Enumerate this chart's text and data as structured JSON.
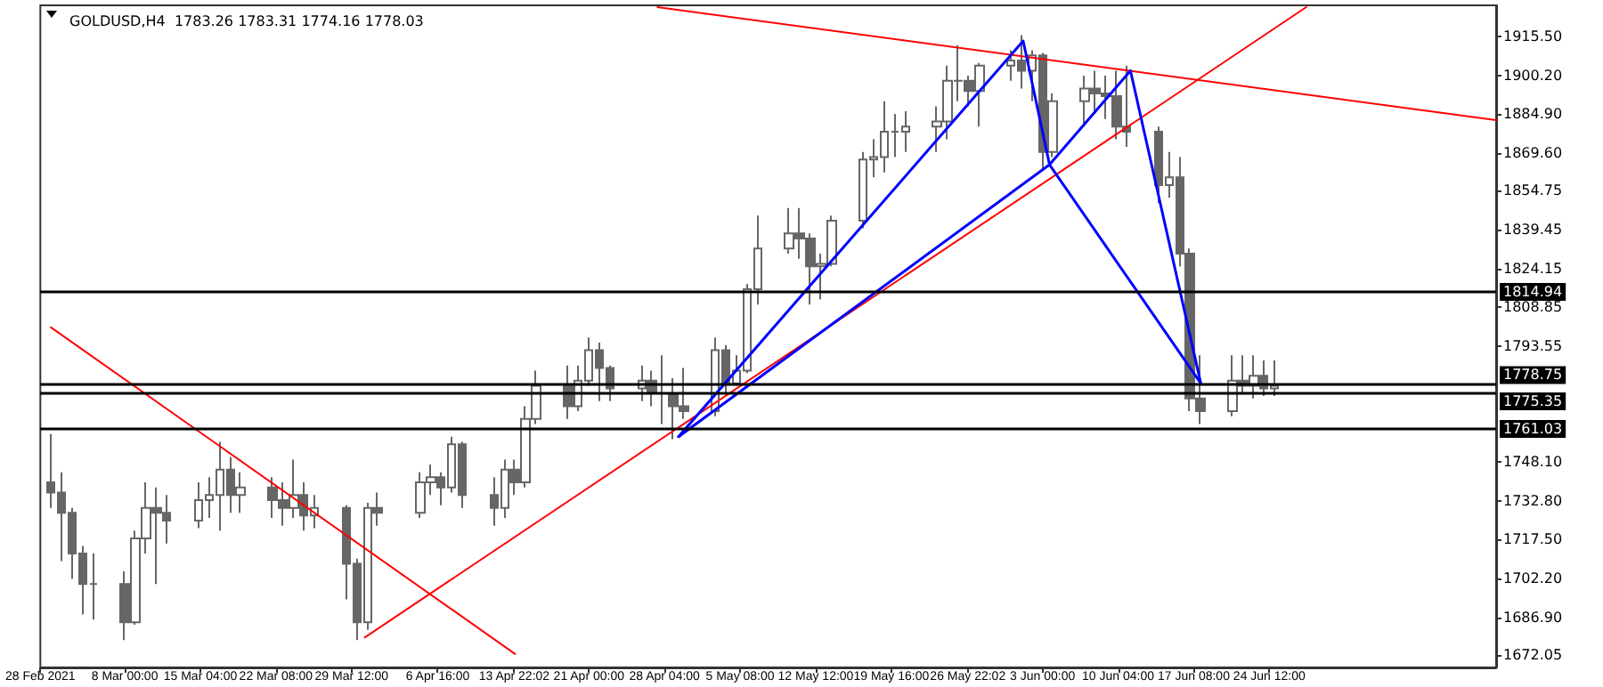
{
  "chart_data": {
    "type": "candlestick",
    "title": "GOLDUSD,H4  1783.26 1783.31 1774.16 1778.03",
    "color": "#666666",
    "marker": "none",
    "line_style": "solid",
    "grid": false,
    "x": [
      "2021-03-01",
      "2021-03-02",
      "2021-03-03",
      "2021-03-04",
      "2021-03-05",
      "2021-03-08",
      "2021-03-09",
      "2021-03-10",
      "2021-03-11",
      "2021-03-12",
      "2021-03-15",
      "2021-03-16",
      "2021-03-17",
      "2021-03-18",
      "2021-03-19",
      "2021-03-22",
      "2021-03-23",
      "2021-03-24",
      "2021-03-25",
      "2021-03-26",
      "2021-03-29",
      "2021-03-30",
      "2021-03-31",
      "2021-04-01",
      "2021-04-05",
      "2021-04-06",
      "2021-04-07",
      "2021-04-08",
      "2021-04-09",
      "2021-04-12",
      "2021-04-13",
      "2021-04-14",
      "2021-04-15",
      "2021-04-16",
      "2021-04-19",
      "2021-04-20",
      "2021-04-21",
      "2021-04-22",
      "2021-04-23",
      "2021-04-26",
      "2021-04-27",
      "2021-04-28",
      "2021-04-29",
      "2021-04-30",
      "2021-05-03",
      "2021-05-04",
      "2021-05-05",
      "2021-05-06",
      "2021-05-07",
      "2021-05-10",
      "2021-05-11",
      "2021-05-12",
      "2021-05-13",
      "2021-05-14",
      "2021-05-17",
      "2021-05-18",
      "2021-05-19",
      "2021-05-20",
      "2021-05-21",
      "2021-05-24",
      "2021-05-25",
      "2021-05-26",
      "2021-05-27",
      "2021-05-28",
      "2021-05-31",
      "2021-06-01",
      "2021-06-02",
      "2021-06-03",
      "2021-06-04",
      "2021-06-07",
      "2021-06-08",
      "2021-06-09",
      "2021-06-10",
      "2021-06-11",
      "2021-06-14",
      "2021-06-15",
      "2021-06-16",
      "2021-06-17",
      "2021-06-18",
      "2021-06-21",
      "2021-06-22",
      "2021-06-23",
      "2021-06-24",
      "2021-06-25"
    ],
    "ohlc": [
      [
        1740,
        1759,
        1730,
        1736
      ],
      [
        1736,
        1744,
        1709,
        1728
      ],
      [
        1728,
        1730,
        1702,
        1712
      ],
      [
        1712,
        1715,
        1688,
        1700
      ],
      [
        1700,
        1712,
        1686,
        1700
      ],
      [
        1700,
        1705,
        1678,
        1685
      ],
      [
        1685,
        1721,
        1684,
        1718
      ],
      [
        1718,
        1740,
        1712,
        1730
      ],
      [
        1730,
        1738,
        1700,
        1728
      ],
      [
        1728,
        1735,
        1716,
        1725
      ],
      [
        1725,
        1740,
        1722,
        1733
      ],
      [
        1733,
        1742,
        1726,
        1735
      ],
      [
        1735,
        1756,
        1721,
        1745
      ],
      [
        1745,
        1750,
        1728,
        1735
      ],
      [
        1735,
        1744,
        1728,
        1738
      ],
      [
        1738,
        1742,
        1726,
        1733
      ],
      [
        1733,
        1740,
        1723,
        1730
      ],
      [
        1730,
        1749,
        1726,
        1735
      ],
      [
        1735,
        1740,
        1721,
        1727
      ],
      [
        1727,
        1735,
        1722,
        1730
      ],
      [
        1730,
        1731,
        1694,
        1708
      ],
      [
        1708,
        1710,
        1678,
        1685
      ],
      [
        1685,
        1732,
        1682,
        1730
      ],
      [
        1730,
        1736,
        1723,
        1728
      ],
      [
        1728,
        1744,
        1726,
        1740
      ],
      [
        1740,
        1747,
        1735,
        1742
      ],
      [
        1742,
        1744,
        1731,
        1738
      ],
      [
        1738,
        1758,
        1736,
        1755
      ],
      [
        1755,
        1756,
        1730,
        1735
      ],
      [
        1735,
        1742,
        1723,
        1730
      ],
      [
        1730,
        1749,
        1726,
        1745
      ],
      [
        1745,
        1749,
        1735,
        1740
      ],
      [
        1740,
        1770,
        1738,
        1765
      ],
      [
        1765,
        1784,
        1763,
        1778
      ],
      [
        1778,
        1786,
        1765,
        1770
      ],
      [
        1770,
        1786,
        1768,
        1780
      ],
      [
        1780,
        1797,
        1778,
        1792
      ],
      [
        1792,
        1795,
        1772,
        1785
      ],
      [
        1785,
        1786,
        1772,
        1777
      ],
      [
        1777,
        1786,
        1772,
        1780
      ],
      [
        1780,
        1784,
        1770,
        1775
      ],
      [
        1775,
        1790,
        1763,
        1775
      ],
      [
        1775,
        1781,
        1757,
        1770
      ],
      [
        1770,
        1785,
        1765,
        1768
      ],
      [
        1768,
        1797,
        1766,
        1792
      ],
      [
        1792,
        1794,
        1775,
        1779
      ],
      [
        1779,
        1790,
        1778,
        1784
      ],
      [
        1784,
        1818,
        1783,
        1816
      ],
      [
        1816,
        1845,
        1810,
        1832
      ],
      [
        1832,
        1848,
        1830,
        1838
      ],
      [
        1838,
        1848,
        1828,
        1836
      ],
      [
        1836,
        1838,
        1810,
        1825
      ],
      [
        1825,
        1830,
        1812,
        1826
      ],
      [
        1826,
        1845,
        1825,
        1843
      ],
      [
        1843,
        1870,
        1840,
        1867
      ],
      [
        1867,
        1875,
        1860,
        1868
      ],
      [
        1868,
        1890,
        1862,
        1878
      ],
      [
        1878,
        1885,
        1868,
        1878
      ],
      [
        1878,
        1886,
        1870,
        1880
      ],
      [
        1880,
        1888,
        1870,
        1882
      ],
      [
        1882,
        1904,
        1875,
        1898
      ],
      [
        1898,
        1912,
        1890,
        1898
      ],
      [
        1898,
        1900,
        1888,
        1894
      ],
      [
        1894,
        1905,
        1880,
        1904
      ],
      [
        1904,
        1910,
        1898,
        1906
      ],
      [
        1906,
        1916,
        1895,
        1902
      ],
      [
        1902,
        1910,
        1890,
        1908
      ],
      [
        1908,
        1909,
        1863,
        1870
      ],
      [
        1870,
        1893,
        1868,
        1890
      ],
      [
        1890,
        1900,
        1880,
        1895
      ],
      [
        1895,
        1902,
        1885,
        1893
      ],
      [
        1893,
        1900,
        1883,
        1892
      ],
      [
        1892,
        1902,
        1875,
        1880
      ],
      [
        1880,
        1904,
        1872,
        1878
      ],
      [
        1878,
        1880,
        1850,
        1857
      ],
      [
        1857,
        1870,
        1852,
        1860
      ],
      [
        1860,
        1868,
        1825,
        1830
      ],
      [
        1830,
        1832,
        1768,
        1773
      ],
      [
        1773,
        1790,
        1763,
        1768
      ],
      [
        1768,
        1790,
        1766,
        1780
      ],
      [
        1780,
        1790,
        1775,
        1778
      ],
      [
        1778,
        1790,
        1773,
        1782
      ],
      [
        1782,
        1788,
        1774,
        1777
      ],
      [
        1777,
        1788,
        1774,
        1778
      ]
    ],
    "series": [
      {
        "type": "line",
        "color": "#ff0000",
        "x": [
          "2021-03-01T00:00",
          "2021-04-14T00:00"
        ],
        "values": [
          1801,
          1672.5
        ]
      },
      {
        "type": "line",
        "color": "#ff0000",
        "x": [
          "2021-03-30T18:00",
          "2021-06-28T00:00"
        ],
        "values": [
          1679,
          1927
        ]
      },
      {
        "type": "line",
        "color": "#ff0000",
        "x": [
          "2021-04-27T12:00",
          "2021-07-16T00:00"
        ],
        "values": [
          1927,
          1882.5
        ]
      },
      {
        "type": "line",
        "color": "#0000ff",
        "x": [
          "2021-04-29T12:00",
          "2021-06-01T04:00",
          "2021-06-03T16:00",
          "2021-06-11T08:00",
          "2021-06-18T00:00"
        ],
        "values": [
          1758,
          1913.7,
          1865,
          1902,
          1779
        ]
      },
      {
        "type": "line",
        "color": "#0000ff",
        "x": [
          "2021-04-29T12:00",
          "2021-06-03T16:00"
        ],
        "values": [
          1758,
          1865
        ]
      },
      {
        "type": "line",
        "color": "#0000ff",
        "x": [
          "2021-06-03T16:00",
          "2021-06-18T00:00"
        ],
        "values": [
          1865,
          1779
        ]
      }
    ],
    "ref_lines": [
      {
        "axis": "y",
        "value": 1814.94,
        "label": "1814.94",
        "color": "#000000"
      },
      {
        "axis": "y",
        "value": 1778.75,
        "label": "1778.75",
        "color": "#000000"
      },
      {
        "axis": "y",
        "value": 1775.35,
        "label": "1775.35",
        "color": "#000000"
      },
      {
        "axis": "y",
        "value": 1761.03,
        "label": "1761.03",
        "color": "#000000"
      }
    ],
    "xlim": [
      "2021-02-28T00:00",
      "2021-07-16T00:00"
    ],
    "xticks": [
      {
        "value": "2021-02-28T00:00",
        "label": "28 Feb 2021"
      },
      {
        "value": "2021-03-08T00:00",
        "label": "8 Mar 00:00"
      },
      {
        "value": "2021-03-15T04:00",
        "label": "15 Mar 04:00"
      },
      {
        "value": "2021-03-22T08:00",
        "label": "22 Mar 08:00"
      },
      {
        "value": "2021-03-29T12:00",
        "label": "29 Mar 12:00"
      },
      {
        "value": "2021-04-06T16:00",
        "label": "6 Apr 16:00"
      },
      {
        "value": "2021-04-13T22:02",
        "label": "13 Apr 22:02"
      },
      {
        "value": "2021-04-21T00:00",
        "label": "21 Apr 00:00"
      },
      {
        "value": "2021-04-28T04:00",
        "label": "28 Apr 04:00"
      },
      {
        "value": "2021-05-05T08:00",
        "label": "5 May 08:00"
      },
      {
        "value": "2021-05-12T12:00",
        "label": "12 May 12:00"
      },
      {
        "value": "2021-05-19T16:00",
        "label": "19 May 16:00"
      },
      {
        "value": "2021-05-26T22:02",
        "label": "26 May 22:02"
      },
      {
        "value": "2021-06-03T00:00",
        "label": "3 Jun 00:00"
      },
      {
        "value": "2021-06-10T04:00",
        "label": "10 Jun 04:00"
      },
      {
        "value": "2021-06-17T08:00",
        "label": "17 Jun 08:00"
      },
      {
        "value": "2021-06-24T12:00",
        "label": "24 Jun 12:00"
      }
    ],
    "ylim": [
      1667.2,
      1927.7
    ],
    "yticks": [
      {
        "value": 1915.5,
        "label": "1915.50"
      },
      {
        "value": 1900.2,
        "label": "1900.20"
      },
      {
        "value": 1884.9,
        "label": "1884.90"
      },
      {
        "value": 1869.6,
        "label": "1869.60"
      },
      {
        "value": 1854.75,
        "label": "1854.75"
      },
      {
        "value": 1839.45,
        "label": "1839.45"
      },
      {
        "value": 1824.15,
        "label": "1824.15"
      },
      {
        "value": 1808.85,
        "label": "1808.85"
      },
      {
        "value": 1793.55,
        "label": "1793.55"
      },
      {
        "value": 1748.1,
        "label": "1748.10"
      },
      {
        "value": 1732.8,
        "label": "1732.80"
      },
      {
        "value": 1717.5,
        "label": "1717.50"
      },
      {
        "value": 1702.2,
        "label": "1702.20"
      },
      {
        "value": 1686.9,
        "label": "1686.90"
      },
      {
        "value": 1672.05,
        "label": "1672.05"
      }
    ]
  }
}
